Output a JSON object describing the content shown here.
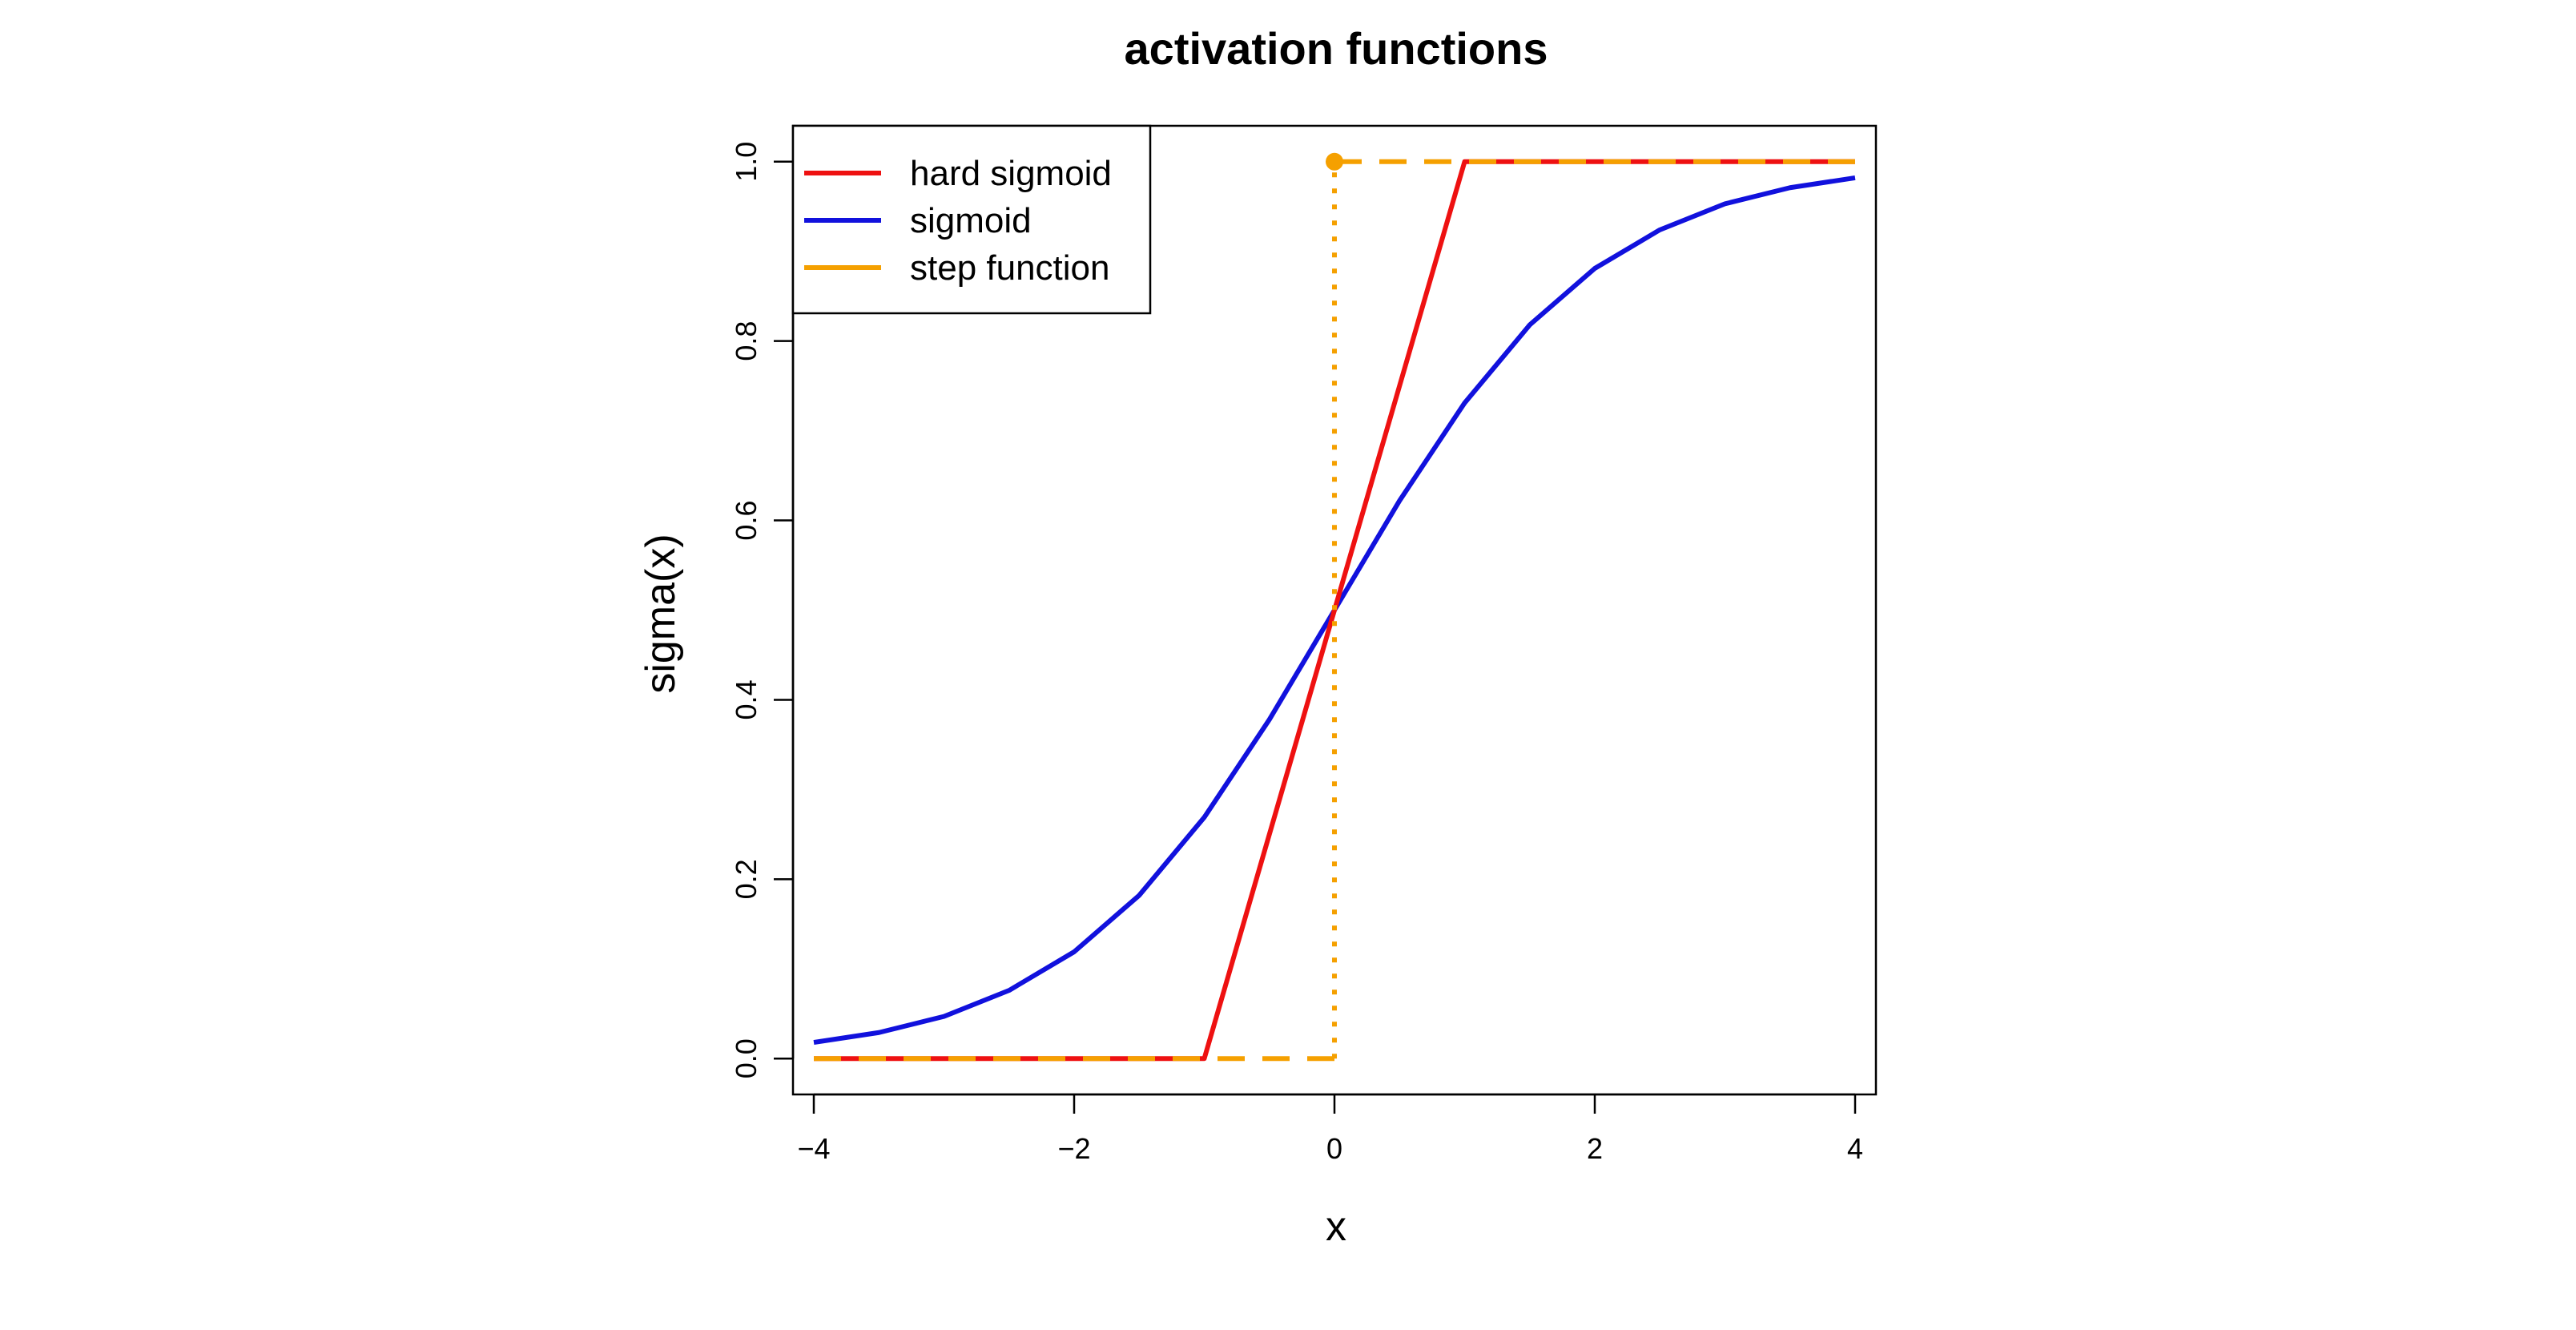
{
  "chart_data": {
    "type": "line",
    "title": "activation functions",
    "xlabel": "x",
    "ylabel": "sigma(x)",
    "xlim": [
      -4.16,
      4.16
    ],
    "ylim": [
      -0.04,
      1.04
    ],
    "x_ticks": [
      -4,
      -2,
      0,
      2,
      4
    ],
    "x_tick_labels": [
      "−4",
      "−2",
      "0",
      "2",
      "4"
    ],
    "y_ticks": [
      0.0,
      0.2,
      0.4,
      0.6,
      0.8,
      1.0
    ],
    "y_tick_labels": [
      "0.0",
      "0.2",
      "0.4",
      "0.6",
      "0.8",
      "1.0"
    ],
    "grid": false,
    "legend_position": "top-left",
    "series": [
      {
        "name": "hard sigmoid",
        "color": "#ee1111",
        "x": [
          -4,
          -1,
          1,
          4
        ],
        "y": [
          0,
          0,
          1,
          1
        ]
      },
      {
        "name": "sigmoid",
        "color": "#1111dd",
        "x": [
          -4,
          -3.5,
          -3,
          -2.5,
          -2,
          -1.5,
          -1,
          -0.5,
          0,
          0.5,
          1,
          1.5,
          2,
          2.5,
          3,
          3.5,
          4
        ],
        "y": [
          0.018,
          0.029,
          0.047,
          0.076,
          0.119,
          0.182,
          0.269,
          0.378,
          0.5,
          0.622,
          0.731,
          0.818,
          0.881,
          0.924,
          0.953,
          0.971,
          0.982
        ]
      },
      {
        "name": "step function",
        "color": "#f5a000",
        "x": [
          -4,
          0,
          0,
          4
        ],
        "y": [
          0,
          0,
          1,
          1
        ]
      }
    ],
    "annotations": [
      {
        "type": "point",
        "x": 0,
        "y": 1,
        "color": "#f5a000"
      }
    ]
  }
}
